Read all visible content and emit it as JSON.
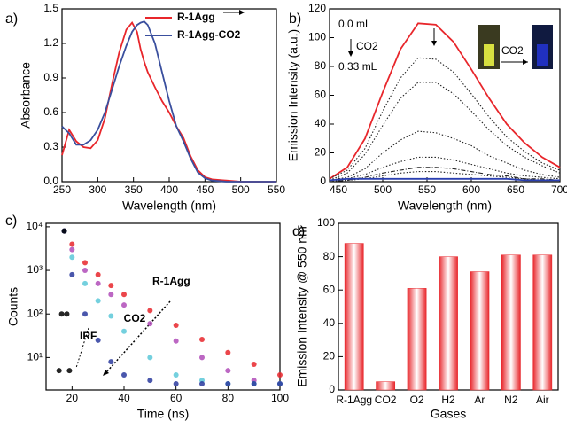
{
  "chart_data": [
    {
      "type": "line",
      "label": "a)",
      "xlabel": "Wavelength (nm)",
      "ylabel": "Absorbance",
      "x": [
        250,
        260,
        270,
        280,
        290,
        300,
        310,
        320,
        330,
        340,
        348,
        355,
        360,
        365,
        370,
        380,
        390,
        400,
        410,
        420,
        430,
        440,
        450,
        460,
        480,
        500,
        550
      ],
      "series": [
        {
          "name": "R-1Agg",
          "color": "#e8262b",
          "values": [
            0.23,
            0.45,
            0.35,
            0.3,
            0.29,
            0.36,
            0.55,
            0.85,
            1.12,
            1.32,
            1.38,
            1.3,
            1.15,
            1.04,
            0.95,
            0.82,
            0.7,
            0.6,
            0.48,
            0.38,
            0.22,
            0.1,
            0.04,
            0.02,
            0.01,
            0,
            0
          ]
        },
        {
          "name": "R-1Agg-CO2",
          "color": "#3a4f9e",
          "values": [
            0.48,
            0.42,
            0.32,
            0.32,
            0.36,
            0.45,
            0.6,
            0.8,
            1.0,
            1.18,
            1.3,
            1.36,
            1.38,
            1.39,
            1.36,
            1.2,
            0.95,
            0.7,
            0.48,
            0.35,
            0.2,
            0.08,
            0.03,
            0.01,
            0,
            0,
            0
          ]
        }
      ],
      "xlim": [
        250,
        550
      ],
      "xticks": [
        250,
        300,
        350,
        400,
        450,
        500,
        550
      ],
      "ylim": [
        0,
        1.5
      ],
      "yticks": [
        {
          "value": 0,
          "label": "0.0"
        },
        {
          "value": 0.3,
          "label": "0.3"
        },
        {
          "value": 0.6,
          "label": "0.6"
        },
        {
          "value": 0.9,
          "label": "0.9"
        },
        {
          "value": 1.2,
          "label": "1.2"
        },
        {
          "value": 1.5,
          "label": "1.5"
        }
      ]
    },
    {
      "type": "line",
      "label": "b)",
      "xlabel": "Wavelength (nm)",
      "ylabel": "Emission Intensity (a.u.)",
      "annotations": [
        "0.0 mL",
        "CO2",
        "0.33 mL",
        "CO2"
      ],
      "x": [
        440,
        460,
        480,
        500,
        520,
        540,
        560,
        580,
        600,
        620,
        640,
        660,
        680,
        700
      ],
      "series": [
        {
          "color": "#e8262b",
          "style": "solid",
          "values": [
            2,
            10,
            30,
            62,
            92,
            110,
            109,
            97,
            78,
            58,
            40,
            27,
            17,
            10
          ]
        },
        {
          "color": "#222222",
          "style": "dotted",
          "values": [
            2,
            8,
            23,
            49,
            72,
            86,
            85,
            76,
            61,
            45,
            31,
            21,
            13,
            8
          ]
        },
        {
          "color": "#222222",
          "style": "dotted",
          "values": [
            1,
            6,
            19,
            39,
            58,
            69,
            69,
            61,
            49,
            36,
            25,
            17,
            11,
            6
          ]
        },
        {
          "color": "#222222",
          "style": "dotted",
          "values": [
            1,
            3,
            9,
            20,
            29,
            35,
            34,
            30,
            25,
            18,
            13,
            8,
            5,
            3
          ]
        },
        {
          "color": "#222222",
          "style": "dotted",
          "values": [
            0,
            2,
            5,
            10,
            14,
            17,
            17,
            15,
            12,
            9,
            6,
            4,
            3,
            2
          ]
        },
        {
          "color": "#222222",
          "style": "dashed",
          "values": [
            0,
            1,
            3,
            6,
            8,
            10,
            10,
            9,
            7,
            5,
            4,
            2,
            2,
            1
          ]
        },
        {
          "color": "#222222",
          "style": "dotted",
          "values": [
            0,
            1,
            2,
            4,
            6,
            7,
            7,
            6,
            5,
            4,
            3,
            2,
            1,
            1
          ]
        },
        {
          "color": "#2a3fb0",
          "style": "solid",
          "values": [
            1,
            2,
            2,
            2,
            2,
            2,
            2,
            2,
            2,
            2,
            2,
            1,
            1,
            1
          ]
        }
      ],
      "xlim": [
        440,
        700
      ],
      "xticks": [
        450,
        500,
        550,
        600,
        650,
        700
      ],
      "ylim": [
        0,
        120
      ],
      "yticks": [
        0,
        20,
        40,
        60,
        80,
        100,
        120
      ]
    },
    {
      "type": "scatter",
      "label": "c)",
      "xlabel": "Time (ns)",
      "ylabel": "Counts",
      "log_y": true,
      "annotations": [
        "R-1Agg",
        "CO2",
        "IRF"
      ],
      "series": [
        {
          "color": "#e8262b",
          "x": [
            17,
            20,
            25,
            30,
            35,
            40,
            50,
            60,
            70,
            80,
            90,
            100
          ],
          "values": [
            8000,
            4000,
            1500,
            800,
            450,
            280,
            120,
            55,
            26,
            13,
            7,
            4
          ]
        },
        {
          "color": "#b04cb8",
          "x": [
            17,
            20,
            25,
            30,
            35,
            40,
            50,
            60,
            70,
            80,
            90,
            100
          ],
          "values": [
            8000,
            3000,
            1000,
            500,
            280,
            160,
            60,
            24,
            10,
            5,
            3,
            2.5
          ]
        },
        {
          "color": "#5cc8d8",
          "x": [
            17,
            20,
            25,
            30,
            35,
            40,
            50,
            60,
            70,
            80,
            90,
            100
          ],
          "values": [
            8000,
            2000,
            500,
            200,
            90,
            40,
            10,
            4,
            3,
            2.5,
            2.5,
            2.5
          ]
        },
        {
          "color": "#2a3a9e",
          "x": [
            17,
            20,
            25,
            30,
            35,
            40,
            50,
            60,
            70,
            80,
            90,
            100
          ],
          "values": [
            8000,
            800,
            100,
            25,
            8,
            4,
            3,
            2.5,
            2.5,
            2.5,
            2.5,
            2.5
          ]
        },
        {
          "color": "#000000",
          "x": [
            15,
            16,
            17,
            18,
            19
          ],
          "values": [
            5,
            100,
            8000,
            100,
            5
          ]
        }
      ],
      "xlim": [
        10,
        100
      ],
      "xticks": [
        20,
        40,
        60,
        80,
        100
      ],
      "ylim": [
        1.8,
        12000
      ],
      "yticks": [
        {
          "value": 10,
          "label": "10¹"
        },
        {
          "value": 100,
          "label": "10²"
        },
        {
          "value": 1000,
          "label": "10³"
        },
        {
          "value": 10000,
          "label": "10⁴"
        }
      ]
    },
    {
      "type": "bar",
      "label": "d)",
      "xlabel": "Gases",
      "ylabel": "Emission Intensity @ 550 nm",
      "color": "#e8262b",
      "categories": [
        "R-1Agg",
        "CO2",
        "O2",
        "H2",
        "Ar",
        "N2",
        "Air"
      ],
      "values": [
        88,
        5,
        61,
        80,
        71,
        81,
        81
      ],
      "ylim": [
        0,
        100
      ],
      "yticks": [
        0,
        20,
        40,
        60,
        80,
        100
      ]
    }
  ]
}
